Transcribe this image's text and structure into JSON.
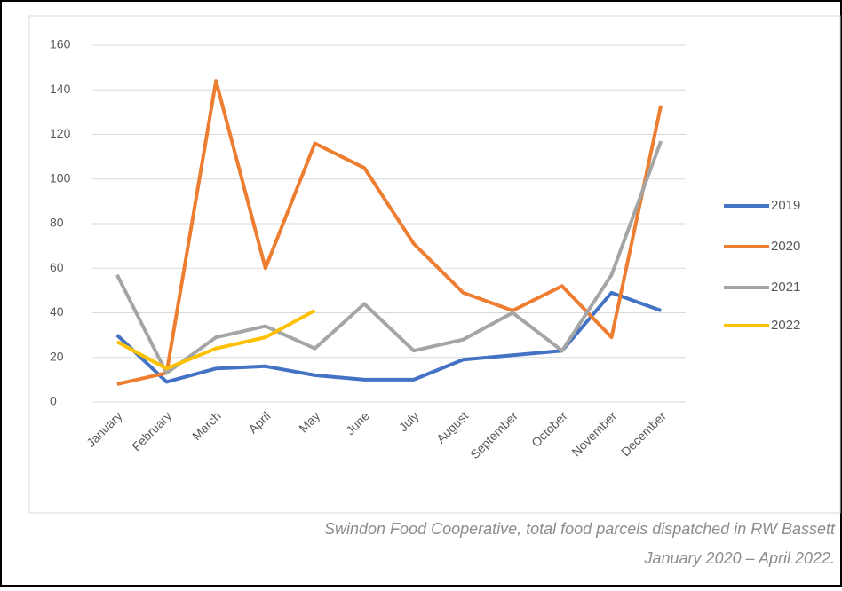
{
  "chart_data": {
    "type": "line",
    "categories": [
      "January",
      "February",
      "March",
      "April",
      "May",
      "June",
      "July",
      "August",
      "September",
      "October",
      "November",
      "December"
    ],
    "series": [
      {
        "name": "2019",
        "color": "#4472c4",
        "values": [
          30,
          9,
          15,
          16,
          12,
          10,
          10,
          19,
          21,
          23,
          49,
          41
        ]
      },
      {
        "name": "2020",
        "color": "#ed7d31",
        "values": [
          8,
          13,
          144,
          60,
          116,
          105,
          71,
          49,
          41,
          52,
          29,
          133
        ]
      },
      {
        "name": "2021",
        "color": "#a5a5a5",
        "values": [
          57,
          13,
          29,
          34,
          24,
          44,
          23,
          28,
          40,
          23,
          57,
          117
        ]
      },
      {
        "name": "2022",
        "color": "#ffc000",
        "values": [
          27,
          15,
          24,
          29,
          41,
          null,
          null,
          null,
          null,
          null,
          null,
          null
        ]
      }
    ],
    "ylim": [
      0,
      160
    ],
    "yticks": [
      0,
      20,
      40,
      60,
      80,
      100,
      120,
      140,
      160
    ],
    "grid": true,
    "legend": "right",
    "caption_lines": [
      "Swindon Food Cooperative, total food parcels dispatched in RW Bassett",
      "January 2020 – April 2022."
    ]
  }
}
